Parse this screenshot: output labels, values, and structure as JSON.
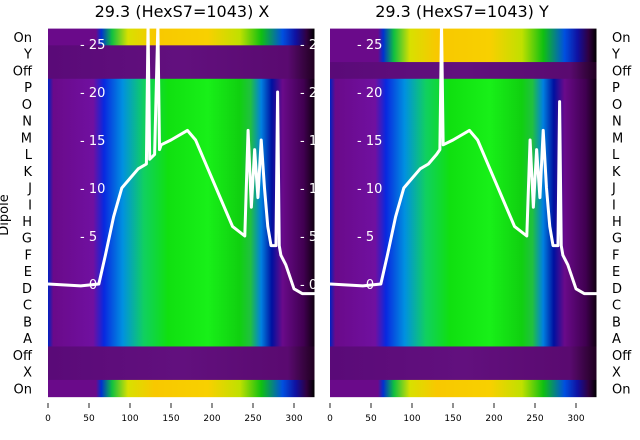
{
  "chart_data": [
    {
      "type": "heatmap",
      "title": "29.3 (HexS7=1043) X",
      "ylabel": "Dipole",
      "xlim": [
        0,
        325
      ],
      "xticks": [
        0,
        50,
        100,
        150,
        200,
        250,
        300
      ],
      "row_labels": [
        "On",
        "Y",
        "Off",
        "P",
        "O",
        "N",
        "M",
        "L",
        "K",
        "J",
        "I",
        "H",
        "G",
        "F",
        "E",
        "D",
        "C",
        "B",
        "A",
        "Off",
        "X",
        "On"
      ],
      "twin_yticks": [
        0,
        5,
        10,
        15,
        20,
        25
      ],
      "line": {
        "x": [
          0,
          40,
          62,
          70,
          80,
          90,
          100,
          110,
          120,
          122,
          124,
          130,
          134,
          136,
          138,
          150,
          170,
          180,
          195,
          210,
          225,
          240,
          244,
          248,
          252,
          256,
          260,
          264,
          268,
          272,
          278,
          280,
          282,
          284,
          290,
          300,
          310,
          325
        ],
        "y": [
          0,
          -0.2,
          0,
          3,
          7,
          10,
          11,
          12,
          12.5,
          27,
          13,
          13.5,
          27,
          14,
          14.5,
          15,
          16,
          15,
          12,
          9,
          6,
          5,
          16,
          8,
          14,
          9,
          15,
          10,
          6,
          4,
          4,
          20,
          4,
          3,
          2,
          -0.5,
          -1,
          -1
        ]
      }
    },
    {
      "type": "heatmap",
      "title": "29.3 (HexS7=1043) Y",
      "ylabel": "",
      "xlim": [
        0,
        325
      ],
      "xticks": [
        0,
        50,
        100,
        150,
        200,
        250,
        300
      ],
      "row_labels": [
        "On",
        "Y",
        "Off",
        "P",
        "O",
        "N",
        "M",
        "L",
        "K",
        "J",
        "I",
        "H",
        "G",
        "F",
        "E",
        "D",
        "C",
        "B",
        "A",
        "Off",
        "X",
        "On"
      ],
      "twin_yticks": [
        0,
        5,
        10,
        15,
        20,
        25
      ],
      "line": {
        "x": [
          0,
          40,
          62,
          70,
          80,
          90,
          100,
          110,
          120,
          130,
          134,
          136,
          138,
          150,
          170,
          180,
          195,
          210,
          225,
          240,
          244,
          248,
          252,
          256,
          260,
          264,
          268,
          272,
          278,
          280,
          282,
          284,
          290,
          300,
          310,
          325
        ],
        "y": [
          0,
          -0.2,
          0,
          3,
          7,
          10,
          11,
          12,
          12.5,
          13.5,
          14,
          27,
          14.5,
          15,
          16,
          15,
          12,
          9,
          6,
          5,
          15,
          8,
          14,
          9,
          16,
          10,
          6,
          4,
          4,
          19,
          4,
          3,
          2,
          -0.5,
          -1,
          -1
        ]
      }
    }
  ],
  "colors": {
    "line": "#ffffff",
    "purple": "#6a0a8a",
    "dark": "#4a0060",
    "blue": "#1040e0",
    "green": "#10d010",
    "yellow": "#f8d000"
  }
}
